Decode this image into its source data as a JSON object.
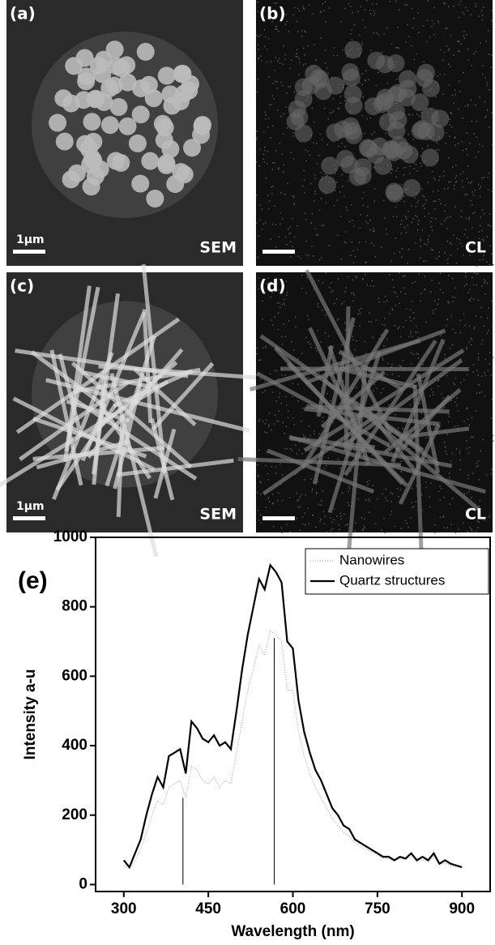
{
  "panels": [
    {
      "label": "(a)",
      "caption": "SEM",
      "scale": "1μm",
      "kind": "dots"
    },
    {
      "label": "(b)",
      "caption": "CL",
      "kind": "noise-dots"
    },
    {
      "label": "(c)",
      "caption": "SEM",
      "scale": "1μm",
      "kind": "rods"
    },
    {
      "label": "(d)",
      "caption": "CL",
      "kind": "noise-rods"
    }
  ],
  "chart_data": {
    "type": "line",
    "annotation": "(e)",
    "x_label": "Wavelength (nm)",
    "y_label": "Intensity a-u",
    "xlim": [
      250,
      950
    ],
    "ylim": [
      -20,
      1000
    ],
    "xticks": [
      300,
      450,
      600,
      750,
      900
    ],
    "yticks": [
      0,
      200,
      400,
      600,
      800,
      1000
    ],
    "legend": "top-right",
    "x": [
      300,
      310,
      320,
      330,
      340,
      350,
      360,
      370,
      380,
      390,
      400,
      410,
      420,
      430,
      440,
      450,
      460,
      470,
      480,
      490,
      500,
      510,
      520,
      530,
      540,
      550,
      560,
      570,
      580,
      590,
      600,
      610,
      620,
      630,
      640,
      650,
      660,
      670,
      680,
      690,
      700,
      710,
      720,
      730,
      740,
      750,
      760,
      770,
      780,
      790,
      800,
      810,
      820,
      830,
      840,
      850,
      860,
      870,
      880,
      890,
      900
    ],
    "series": [
      {
        "name": "Nanowires",
        "color": "#aaaaaa",
        "dash": "1,2",
        "values": [
          55,
          45,
          70,
          100,
          150,
          200,
          240,
          230,
          280,
          290,
          300,
          250,
          340,
          330,
          300,
          290,
          310,
          280,
          300,
          290,
          380,
          470,
          560,
          620,
          690,
          660,
          730,
          720,
          700,
          560,
          560,
          440,
          370,
          320,
          280,
          250,
          220,
          190,
          170,
          150,
          140,
          120,
          110,
          100,
          95,
          85,
          75,
          75,
          68,
          75,
          72,
          80,
          66,
          72,
          65,
          80,
          58,
          62,
          55,
          52,
          48
        ]
      },
      {
        "name": "Quartz structures",
        "color": "#000000",
        "values": [
          70,
          50,
          90,
          130,
          200,
          260,
          310,
          280,
          370,
          380,
          390,
          320,
          470,
          450,
          420,
          410,
          430,
          400,
          410,
          390,
          500,
          620,
          720,
          800,
          880,
          850,
          920,
          900,
          870,
          700,
          680,
          530,
          440,
          380,
          330,
          300,
          260,
          220,
          200,
          170,
          160,
          130,
          120,
          110,
          100,
          90,
          80,
          80,
          70,
          80,
          75,
          90,
          70,
          80,
          70,
          90,
          60,
          70,
          60,
          55,
          50
        ]
      }
    ],
    "vlines": {
      "x": [
        405,
        567
      ],
      "values": [
        250,
        710
      ]
    }
  }
}
